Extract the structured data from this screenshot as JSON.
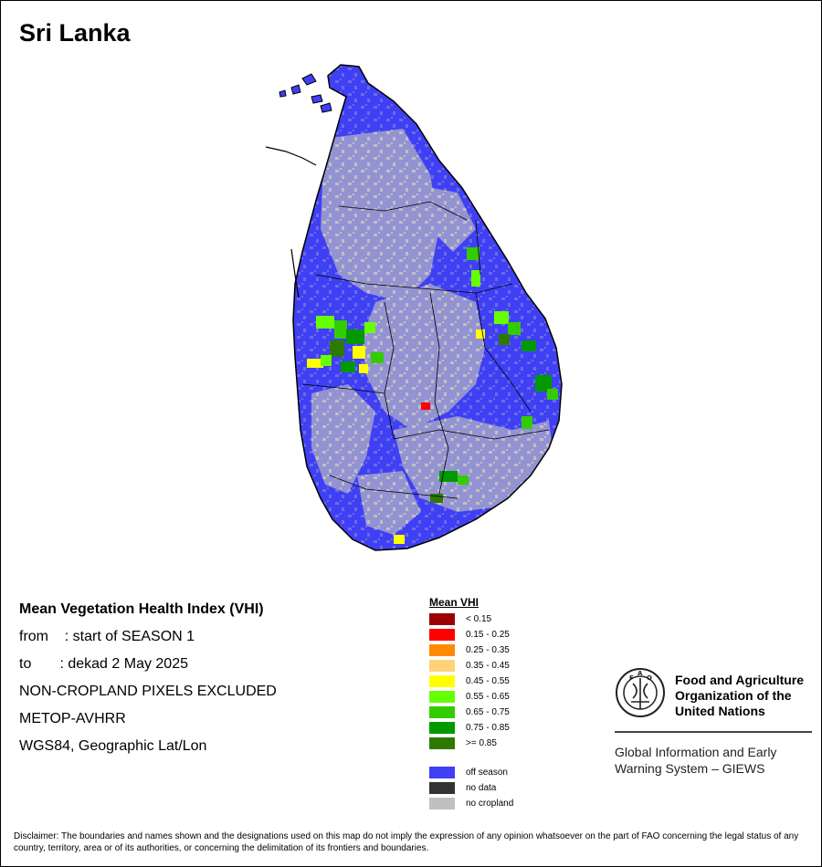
{
  "map": {
    "title": "Sri Lanka"
  },
  "info": {
    "heading": "Mean Vegetation Health Index (VHI)",
    "from_line": "from    : start of SEASON 1",
    "to_line": "to       : dekad 2 May 2025",
    "exclusion": "NON-CROPLAND PIXELS EXCLUDED",
    "sensor": "METOP-AVHRR",
    "projection": "WGS84, Geographic Lat/Lon"
  },
  "legend": {
    "title": "Mean VHI",
    "classes": [
      {
        "label": "< 0.15",
        "color": "#9b0000"
      },
      {
        "label": "0.15 - 0.25",
        "color": "#ff0000"
      },
      {
        "label": "0.25 - 0.35",
        "color": "#ff8a00"
      },
      {
        "label": "0.35 - 0.45",
        "color": "#ffd27a"
      },
      {
        "label": "0.45 - 0.55",
        "color": "#ffff00"
      },
      {
        "label": "0.55 - 0.65",
        "color": "#66ff00"
      },
      {
        "label": "0.65 - 0.75",
        "color": "#33cc00"
      },
      {
        "label": "0.75 - 0.85",
        "color": "#009900"
      },
      {
        "label": ">= 0.85",
        "color": "#2d7a00"
      }
    ],
    "special": [
      {
        "label": "off season",
        "color": "#3f3ff5"
      },
      {
        "label": "no data",
        "color": "#333333"
      },
      {
        "label": "no cropland",
        "color": "#c0c0c0"
      }
    ]
  },
  "organization": {
    "name_line1": "Food and Agriculture",
    "name_line2": "Organization of the",
    "name_line3": "United Nations",
    "system_line1": "Global Information and Early",
    "system_line2": "Warning System – GIEWS"
  },
  "disclaimer": "Disclaimer: The boundaries and names shown and the designations used on this map do not imply the expression of any opinion whatsoever on the part of FAO concerning the legal status of any country, territory, area or of its authorities, or concerning the delimitation of its frontiers and boundaries."
}
